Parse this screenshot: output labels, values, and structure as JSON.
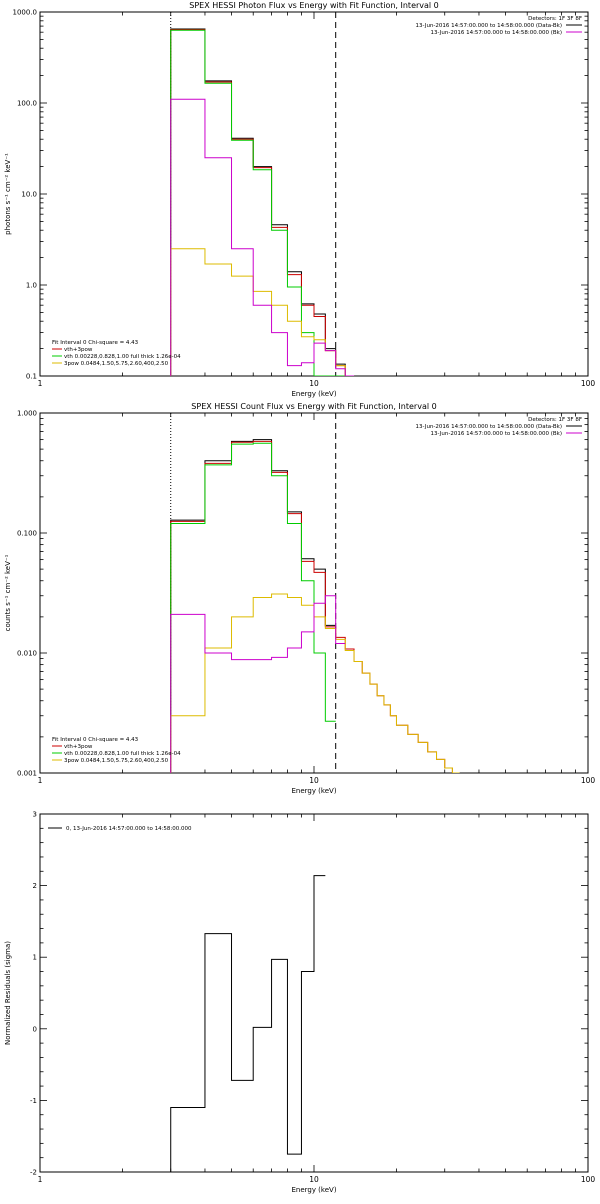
{
  "chart_data": [
    {
      "type": "line",
      "title": "SPEX HESSI Photon Flux vs Energy with Fit Function, Interval 0",
      "xlabel": "Energy (keV)",
      "ylabel": "photons s⁻¹ cm⁻² keV⁻¹",
      "xscale": "log",
      "yscale": "log",
      "xlim": [
        1,
        100
      ],
      "ylim": [
        0.1,
        1000
      ],
      "xticks": [
        {
          "v": 1,
          "label": "1"
        },
        {
          "v": 10,
          "label": "10"
        },
        {
          "v": 100,
          "label": "100"
        }
      ],
      "yticks": [
        {
          "v": 0.1,
          "label": "0.1"
        },
        {
          "v": 1,
          "label": "1.0"
        },
        {
          "v": 10,
          "label": "10.0"
        },
        {
          "v": 100,
          "label": "100.0"
        },
        {
          "v": 1000,
          "label": "1000.0"
        }
      ],
      "legend_top": {
        "header": "Detectors: 1F 3F 8F",
        "entries": [
          {
            "text": "13-Jun-2016 14:57:00.000 to 14:58:00.000 (Data-Bk)",
            "color": "#000000"
          },
          {
            "text": "13-Jun-2016 14:57:00.000 to 14:58:00.000 (Bk)",
            "color": "#cc00cc"
          }
        ]
      },
      "legend_bottom": {
        "header": "Fit Interval 0   Chi-square = 4.43",
        "entries": [
          {
            "text": "vth+3pow",
            "color": "#cc0000"
          },
          {
            "text": "vth 0.00228,0.828,1.00  full thick 1.26e-04",
            "color": "#00cc00"
          },
          {
            "text": "3pow 0.0484,1.50,5.75,2.60,400,2.50",
            "color": "#ddbb00"
          }
        ]
      },
      "vlines": [
        {
          "x": 3.0,
          "style": "dotted",
          "color": "#000000"
        },
        {
          "x": 12.0,
          "style": "dashed",
          "color": "#000000"
        }
      ],
      "bin_edges": [
        3.0,
        4.0,
        5.0,
        6.0,
        7.0,
        8.0,
        9.0,
        10.0,
        11.0,
        12.0,
        13.0,
        14.0
      ],
      "series": [
        {
          "name": "data",
          "color": "#000000",
          "values": [
            650,
            175,
            41,
            20,
            4.6,
            1.4,
            0.62,
            0.48,
            0.2,
            0.135,
            0.1
          ]
        },
        {
          "name": "vth+3pow",
          "color": "#cc0000",
          "values": [
            640,
            170,
            40,
            19.5,
            4.3,
            1.3,
            0.6,
            0.45,
            0.19,
            0.13,
            0.1
          ]
        },
        {
          "name": "vth",
          "color": "#00cc00",
          "values": [
            630,
            165,
            39,
            18.5,
            4.0,
            0.95,
            0.3,
            0.1,
            0.08,
            0.08,
            0.08
          ]
        },
        {
          "name": "3pow",
          "color": "#ddbb00",
          "values": [
            2.5,
            1.7,
            1.25,
            0.85,
            0.6,
            0.4,
            0.27,
            0.25,
            0.19,
            0.13,
            0.1
          ]
        },
        {
          "name": "Bk",
          "color": "#cc00cc",
          "values": [
            110,
            25,
            2.5,
            0.6,
            0.3,
            0.13,
            0.14,
            0.23,
            0.19,
            0.12,
            0.08
          ]
        }
      ]
    },
    {
      "type": "line",
      "title": "SPEX HESSI Count Flux vs Energy with Fit Function, Interval 0",
      "xlabel": "Energy (keV)",
      "ylabel": "counts s⁻¹ cm⁻² keV⁻¹",
      "xscale": "log",
      "yscale": "log",
      "xlim": [
        1,
        100
      ],
      "ylim": [
        0.001,
        1
      ],
      "xticks": [
        {
          "v": 1,
          "label": "1"
        },
        {
          "v": 10,
          "label": "10"
        },
        {
          "v": 100,
          "label": "100"
        }
      ],
      "yticks": [
        {
          "v": 0.001,
          "label": "0.001"
        },
        {
          "v": 0.01,
          "label": "0.010"
        },
        {
          "v": 0.1,
          "label": "0.100"
        },
        {
          "v": 1,
          "label": "1.000"
        }
      ],
      "legend_top": {
        "header": "Detectors: 1F 3F 8F",
        "entries": [
          {
            "text": "13-Jun-2016 14:57:00.000 to 14:58:00.000 (Data-Bk)",
            "color": "#000000"
          },
          {
            "text": "13-Jun-2016 14:57:00.000 to 14:58:00.000 (Bk)",
            "color": "#cc00cc"
          }
        ]
      },
      "legend_bottom": {
        "header": "Fit Interval 0   Chi-square = 4.43",
        "entries": [
          {
            "text": "vth+3pow",
            "color": "#cc0000"
          },
          {
            "text": "vth 0.00228,0.828,1.00  full thick 1.26e-04",
            "color": "#00cc00"
          },
          {
            "text": "3pow 0.0484,1.50,5.75,2.60,400,2.50",
            "color": "#ddbb00"
          }
        ]
      },
      "vlines": [
        {
          "x": 3.0,
          "style": "dotted",
          "color": "#000000"
        },
        {
          "x": 12.0,
          "style": "dashed",
          "color": "#000000"
        }
      ],
      "bin_edges": [
        3.0,
        4.0,
        5.0,
        6.0,
        7.0,
        8.0,
        9.0,
        10.0,
        11.0,
        12.0,
        13.0,
        14.0,
        15.0,
        16.0,
        17.0,
        18.0,
        19.0,
        20.0,
        22.0,
        24.0,
        26.0,
        28.0,
        30.0,
        32.0,
        34.0,
        36.0,
        38.0,
        40.0,
        42.0
      ],
      "series": [
        {
          "name": "data",
          "color": "#000000",
          "values": [
            0.128,
            0.4,
            0.58,
            0.6,
            0.33,
            0.15,
            0.061,
            0.05,
            0.017
          ]
        },
        {
          "name": "vth+3pow",
          "color": "#cc0000",
          "values": [
            0.125,
            0.38,
            0.57,
            0.58,
            0.32,
            0.145,
            0.058,
            0.047,
            0.0165,
            0.0135,
            0.0108,
            0.0085,
            0.0068,
            0.0055,
            0.0044,
            0.0037,
            0.003,
            0.0025,
            0.0021,
            0.0018,
            0.0015,
            0.0013,
            0.0011,
            0.001
          ]
        },
        {
          "name": "vth",
          "color": "#00cc00",
          "values": [
            0.12,
            0.37,
            0.55,
            0.56,
            0.3,
            0.12,
            0.04,
            0.01,
            0.0027
          ]
        },
        {
          "name": "3pow",
          "color": "#ddbb00",
          "values": [
            0.003,
            0.011,
            0.02,
            0.029,
            0.031,
            0.029,
            0.025,
            0.02,
            0.016,
            0.013,
            0.0105,
            0.0085,
            0.0068,
            0.0055,
            0.0044,
            0.0037,
            0.003,
            0.0025,
            0.0021,
            0.0018,
            0.0015,
            0.0013,
            0.0011,
            0.001
          ]
        },
        {
          "name": "Bk",
          "color": "#cc00cc",
          "values": [
            0.021,
            0.01,
            0.0088,
            0.0088,
            0.0092,
            0.011,
            0.015,
            0.026,
            0.03,
            0.012
          ]
        }
      ]
    },
    {
      "type": "line",
      "title": "",
      "xlabel": "Energy (keV)",
      "ylabel": "Normalized Residuals (sigma)",
      "xscale": "log",
      "yscale": "linear",
      "xlim": [
        1,
        100
      ],
      "ylim": [
        -2,
        3
      ],
      "xticks": [
        {
          "v": 1,
          "label": "1"
        },
        {
          "v": 10,
          "label": "10"
        },
        {
          "v": 100,
          "label": "100"
        }
      ],
      "yticks": [
        {
          "v": -2,
          "label": "-2"
        },
        {
          "v": -1,
          "label": "-1"
        },
        {
          "v": 0,
          "label": "0"
        },
        {
          "v": 1,
          "label": "1"
        },
        {
          "v": 2,
          "label": "2"
        },
        {
          "v": 3,
          "label": "3"
        }
      ],
      "legend_top": {
        "header": "",
        "entries": [
          {
            "text": "0, 13-Jun-2016 14:57:00.000 to 14:58:00.000",
            "color": "#000000"
          }
        ]
      },
      "vlines": [],
      "bin_edges": [
        3.0,
        4.0,
        5.0,
        6.0,
        7.0,
        8.0,
        9.0,
        10.0,
        11.0
      ],
      "series": [
        {
          "name": "residuals",
          "color": "#000000",
          "values": [
            -1.1,
            1.33,
            -0.72,
            0.02,
            0.97,
            -1.75,
            0.8,
            2.14
          ]
        }
      ]
    }
  ]
}
